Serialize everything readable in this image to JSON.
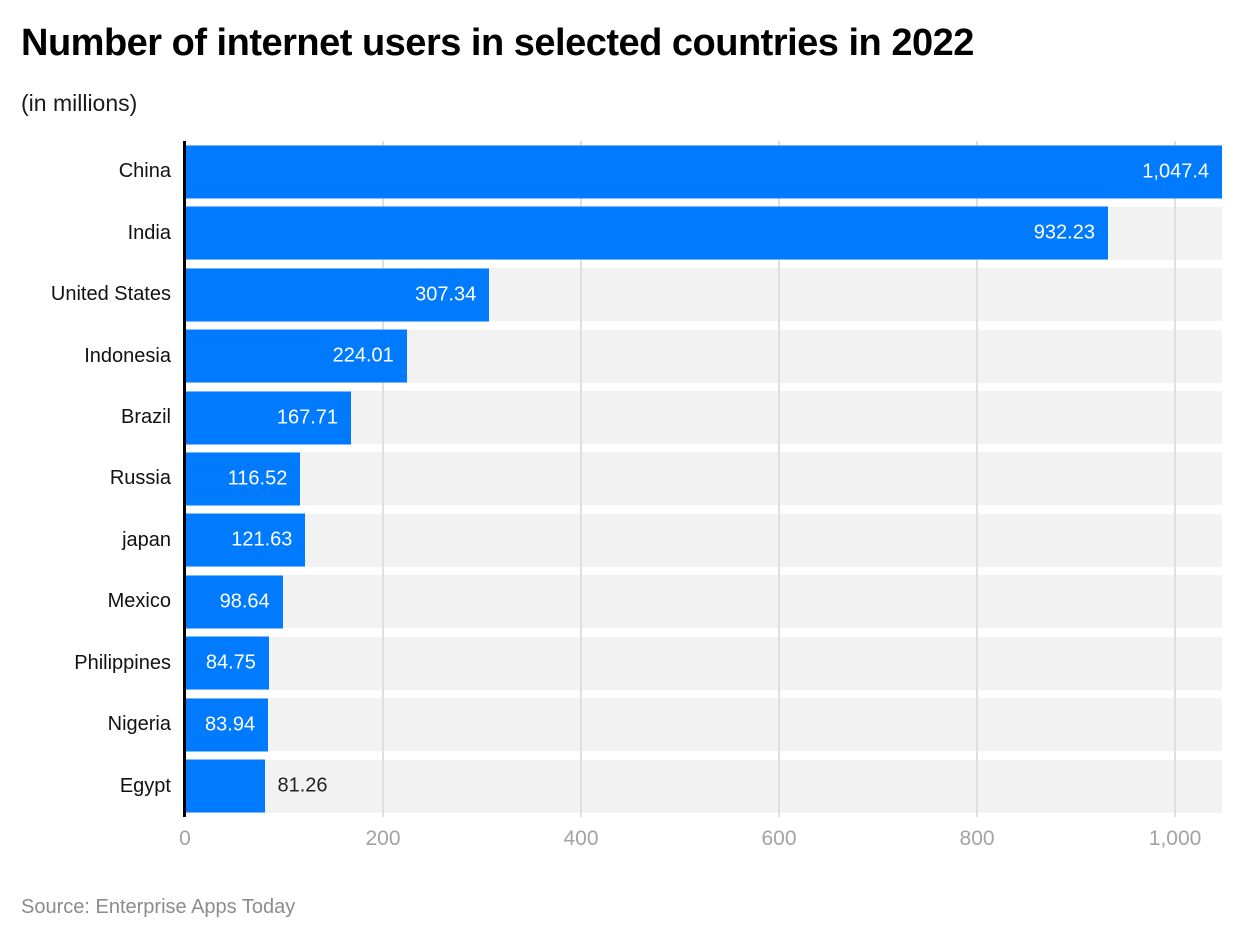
{
  "header": {
    "title": "Number of internet users in selected countries in 2022",
    "subtitle": "(in millions)"
  },
  "footer": {
    "source": "Source: Enterprise Apps Today"
  },
  "chart_data": {
    "type": "bar",
    "orientation": "horizontal",
    "title": "Number of internet users in selected countries in 2022",
    "subtitle": "(in millions)",
    "unit": "millions",
    "categories": [
      "China",
      "India",
      "United States",
      "Indonesia",
      "Brazil",
      "Russia",
      "japan",
      "Mexico",
      "Philippines",
      "Nigeria",
      "Egypt"
    ],
    "values": [
      1047.4,
      932.23,
      307.34,
      224.01,
      167.71,
      116.52,
      121.63,
      98.64,
      84.75,
      83.94,
      81.26
    ],
    "value_labels": [
      "1,047.4",
      "932.23",
      "307.34",
      "224.01",
      "167.71",
      "116.52",
      "121.63",
      "98.64",
      "84.75",
      "83.94",
      "81.26"
    ],
    "value_label_placement": [
      "inside",
      "inside",
      "inside",
      "inside",
      "inside",
      "inside",
      "inside",
      "inside",
      "inside",
      "inside",
      "outside"
    ],
    "xlabel": "",
    "ylabel": "",
    "xlim": [
      0,
      1047.4
    ],
    "x_ticks": [
      0,
      200,
      400,
      600,
      800,
      1000
    ],
    "x_tick_labels": [
      "0",
      "200",
      "400",
      "600",
      "800",
      "1,000"
    ],
    "grid": "vertical",
    "legend": "none",
    "colors": {
      "bar": "#007bff",
      "track": "#f2f2f2",
      "gridline": "#dfdfdf",
      "axis_line": "#000000",
      "value_inside": "#ffffff",
      "value_outside": "#222222",
      "tick_label": "#a3a3a3",
      "category_label": "#111111",
      "source_text": "#8c8c8c"
    }
  }
}
